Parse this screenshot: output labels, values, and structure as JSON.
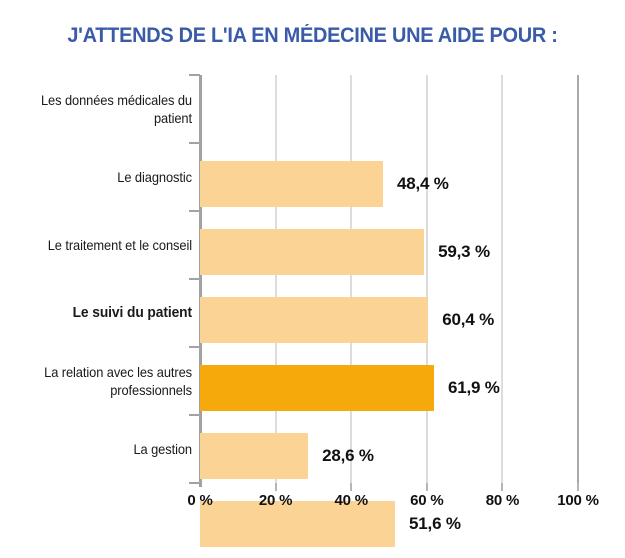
{
  "title": "J'ATTENDS DE L'IA EN MÉDECINE UNE AIDE POUR :",
  "chart_data": {
    "type": "bar",
    "orientation": "horizontal",
    "title": "J'ATTENDS DE L'IA EN MÉDECINE UNE AIDE POUR :",
    "categories": [
      "Les données médicales du patient",
      "Le diagnostic",
      "Le traitement et le conseil",
      "Le suivi du patient",
      "La relation avec les autres professionnels",
      "La gestion"
    ],
    "values": [
      48.4,
      59.3,
      60.4,
      61.9,
      28.6,
      51.6
    ],
    "value_labels": [
      "48,4 %",
      "59,3 %",
      "60,4 %",
      "61,9 %",
      "28,6 %",
      "51,6 %"
    ],
    "highlight_index": 3,
    "highlighted_category": "Le suivi du patient",
    "xlim": [
      0,
      100
    ],
    "x_ticks": [
      "0 %",
      "20 %",
      "40 %",
      "60 %",
      "80 %",
      "100 %"
    ],
    "x_tick_values": [
      0,
      20,
      40,
      60,
      80,
      100
    ],
    "grid": true,
    "legend": "none",
    "colors": {
      "bar": "#FBD395",
      "bar_highlight": "#F5A90B",
      "title": "#3A5BA8",
      "grid": "#DCDCDC",
      "axis": "#A2A2A2",
      "text": "#1A1A1A",
      "value_text": "#111111"
    }
  }
}
